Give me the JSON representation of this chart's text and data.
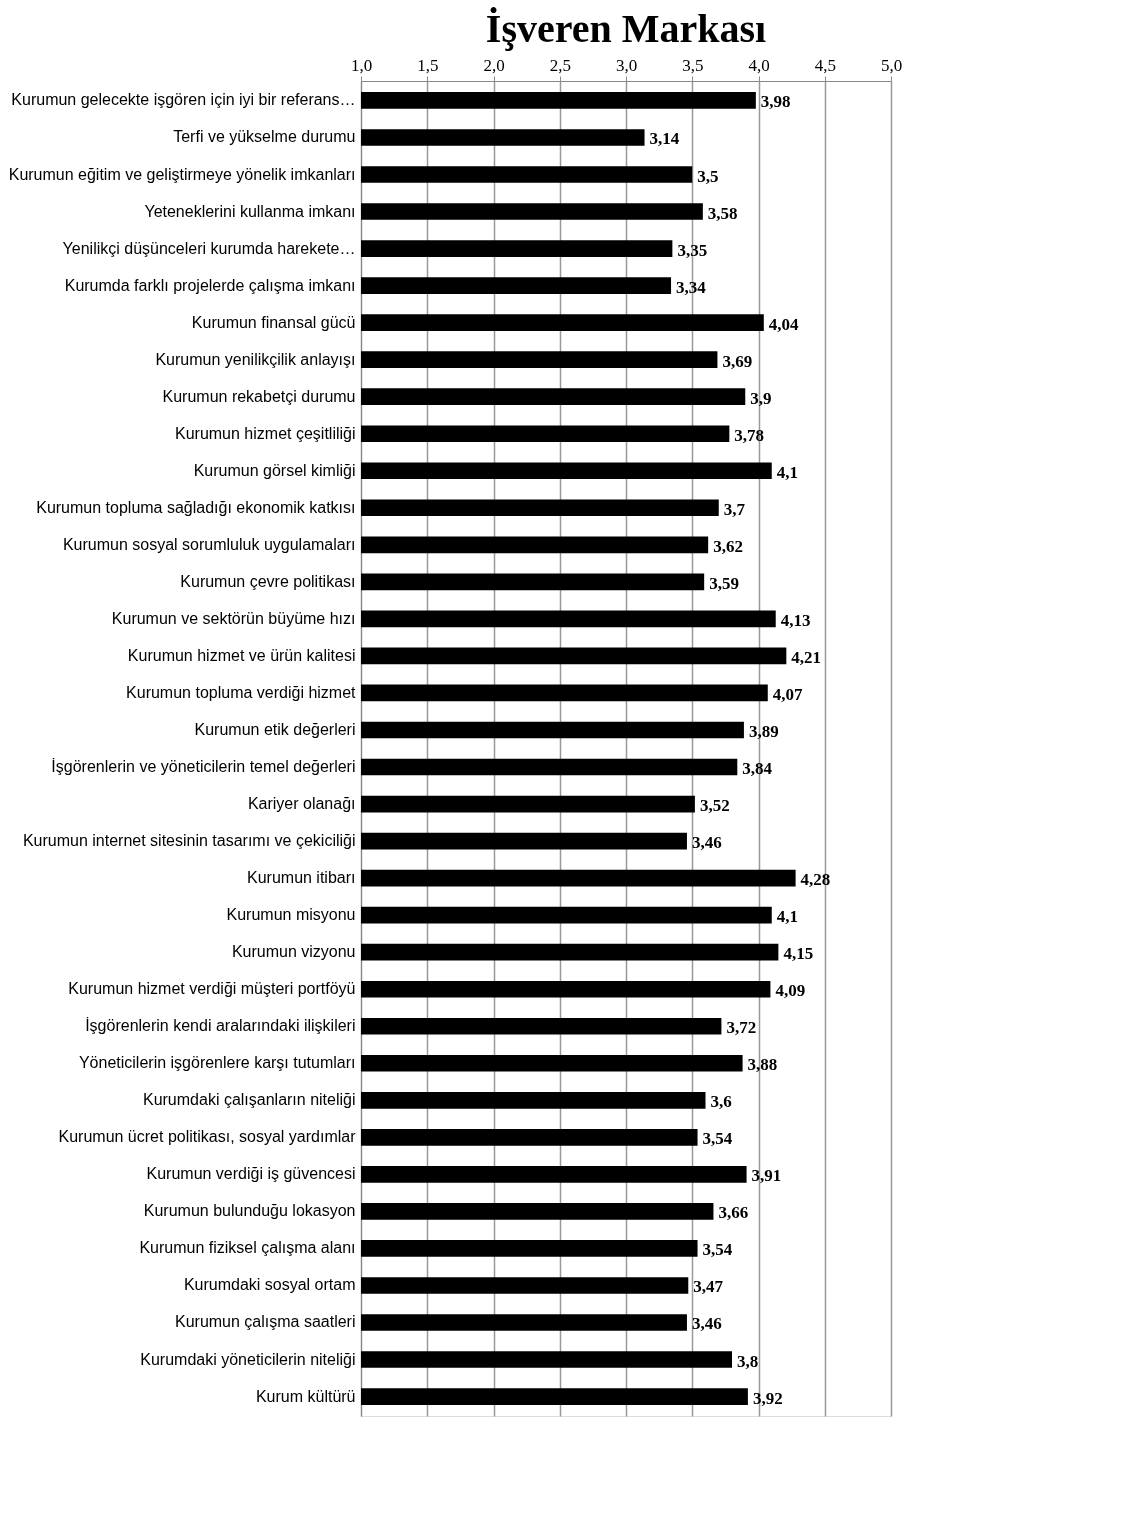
{
  "chart_data": {
    "type": "bar",
    "orientation": "horizontal",
    "title": "İşveren Markası",
    "categories": [
      "Kurumun gelecekte işgören için iyi bir referans…",
      "Terfi ve yükselme durumu",
      "Kurumun eğitim ve geliştirmeye yönelik imkanları",
      "Yeteneklerini kullanma imkanı",
      "Yenilikçi düşünceleri kurumda harekete…",
      "Kurumda farklı projelerde çalışma imkanı",
      "Kurumun finansal gücü",
      "Kurumun yenilikçilik anlayışı",
      "Kurumun rekabetçi durumu",
      "Kurumun hizmet çeşitliliği",
      "Kurumun görsel kimliği",
      "Kurumun topluma sağladığı ekonomik katkısı",
      "Kurumun sosyal sorumluluk uygulamaları",
      "Kurumun çevre politikası",
      "Kurumun ve sektörün büyüme hızı",
      "Kurumun hizmet ve ürün kalitesi",
      "Kurumun topluma verdiği hizmet",
      "Kurumun etik değerleri",
      "İşgörenlerin ve yöneticilerin temel değerleri",
      "Kariyer olanağı",
      "Kurumun internet sitesinin tasarımı ve çekiciliği",
      "Kurumun itibarı",
      "Kurumun misyonu",
      "Kurumun vizyonu",
      "Kurumun hizmet verdiği müşteri portföyü",
      "İşgörenlerin kendi aralarındaki ilişkileri",
      "Yöneticilerin işgörenlere karşı tutumları",
      "Kurumdaki çalışanların niteliği",
      "Kurumun ücret politikası, sosyal yardımlar",
      "Kurumun verdiği iş güvencesi",
      "Kurumun bulunduğu lokasyon",
      "Kurumun fiziksel çalışma alanı",
      "Kurumdaki sosyal ortam",
      "Kurumun çalışma saatleri",
      "Kurumdaki yöneticilerin niteliği",
      "Kurum kültürü"
    ],
    "values": [
      3.98,
      3.14,
      3.5,
      3.58,
      3.35,
      3.34,
      4.04,
      3.69,
      3.9,
      3.78,
      4.1,
      3.7,
      3.62,
      3.59,
      4.13,
      4.21,
      4.07,
      3.89,
      3.84,
      3.52,
      3.46,
      4.28,
      4.1,
      4.15,
      4.09,
      3.72,
      3.88,
      3.6,
      3.54,
      3.91,
      3.66,
      3.54,
      3.47,
      3.46,
      3.8,
      3.92
    ],
    "value_labels": [
      "3,98",
      "3,14",
      "3,5",
      "3,58",
      "3,35",
      "3,34",
      "4,04",
      "3,69",
      "3,9",
      "3,78",
      "4,1",
      "3,7",
      "3,62",
      "3,59",
      "4,13",
      "4,21",
      "4,07",
      "3,89",
      "3,84",
      "3,52",
      "3,46",
      "4,28",
      "4,1",
      "4,15",
      "4,09",
      "3,72",
      "3,88",
      "3,6",
      "3,54",
      "3,91",
      "3,66",
      "3,54",
      "3,47",
      "3,46",
      "3,8",
      "3,92"
    ],
    "color": "#000000",
    "xlim": [
      1.0,
      5.0
    ],
    "xticks": [
      {
        "value": 1.0,
        "label": "1,0"
      },
      {
        "value": 1.5,
        "label": "1,5"
      },
      {
        "value": 2.0,
        "label": "2,0"
      },
      {
        "value": 2.5,
        "label": "2,5"
      },
      {
        "value": 3.0,
        "label": "3,0"
      },
      {
        "value": 3.5,
        "label": "3,5"
      },
      {
        "value": 4.0,
        "label": "4,0"
      },
      {
        "value": 4.5,
        "label": "4,5"
      },
      {
        "value": 5.0,
        "label": "5,0"
      }
    ],
    "grid": "x"
  }
}
